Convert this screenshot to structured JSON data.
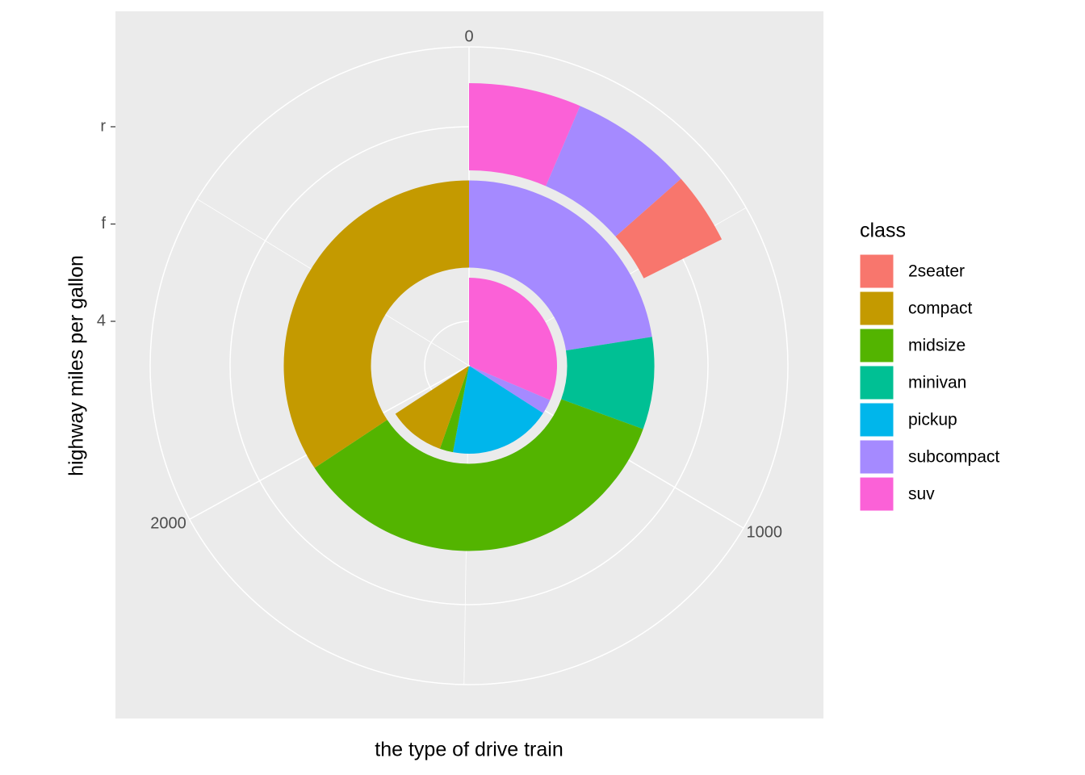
{
  "chart_data": {
    "type": "polar_bar",
    "xlabel": "the type of drive train",
    "ylabel": "highway miles per gallon",
    "legend_title": "class",
    "categories": [
      "4",
      "f",
      "r"
    ],
    "series": [
      {
        "name": "2seater",
        "color": "#F8766D",
        "values": [
          null,
          null,
          123
        ]
      },
      {
        "name": "compact",
        "color": "#C49A00",
        "values": [
          311,
          1024,
          null
        ]
      },
      {
        "name": "midsize",
        "color": "#53B400",
        "values": [
          73,
          1049,
          null
        ]
      },
      {
        "name": "minivan",
        "color": "#00C094",
        "values": [
          null,
          240,
          null
        ]
      },
      {
        "name": "pickup",
        "color": "#00B6EB",
        "values": [
          563,
          null,
          null
        ]
      },
      {
        "name": "subcompact",
        "color": "#A58AFF",
        "values": [
          80,
          672,
          211
        ]
      },
      {
        "name": "suv",
        "color": "#FB61D7",
        "values": [
          937,
          null,
          192
        ]
      }
    ],
    "ylim": [
      0,
      2985
    ],
    "yticks": [
      0,
      1000,
      2000
    ],
    "grid": true,
    "legend": "right"
  }
}
